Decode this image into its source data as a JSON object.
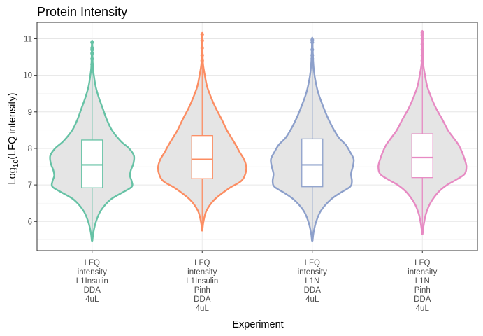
{
  "chart_data": {
    "type": "violin",
    "title": "Protein Intensity",
    "xlabel": "Experiment",
    "ylabel_parts": [
      "Log",
      "10",
      "(LFQ intensity)"
    ],
    "ylim": [
      5.2,
      11.45
    ],
    "yticks": [
      6,
      7,
      8,
      9,
      10,
      11
    ],
    "grid": true,
    "legend": "none",
    "categories": [
      [
        "LFQ",
        "intensity",
        "L1Insulin",
        "DDA",
        "4uL"
      ],
      [
        "LFQ",
        "intensity",
        "L1Insulin",
        "Pinh",
        "DDA",
        "4uL"
      ],
      [
        "LFQ",
        "intensity",
        "L1N",
        "DDA",
        "4uL"
      ],
      [
        "LFQ",
        "intensity",
        "L1N",
        "Pinh",
        "DDA",
        "4uL"
      ]
    ],
    "series": [
      {
        "color": "#66c2a5",
        "box": {
          "q1": 6.92,
          "median": 7.55,
          "q3": 8.23,
          "whisker_low": 5.55,
          "whisker_high": 10.2
        },
        "violin": [
          [
            5.45,
            0.005
          ],
          [
            5.7,
            0.03
          ],
          [
            6.0,
            0.09
          ],
          [
            6.3,
            0.2
          ],
          [
            6.6,
            0.42
          ],
          [
            6.8,
            0.7
          ],
          [
            6.95,
            0.9
          ],
          [
            7.1,
            0.9
          ],
          [
            7.25,
            0.86
          ],
          [
            7.4,
            0.88
          ],
          [
            7.6,
            0.94
          ],
          [
            7.8,
            0.95
          ],
          [
            8.0,
            0.84
          ],
          [
            8.2,
            0.65
          ],
          [
            8.5,
            0.45
          ],
          [
            8.8,
            0.33
          ],
          [
            9.1,
            0.24
          ],
          [
            9.4,
            0.15
          ],
          [
            9.7,
            0.08
          ],
          [
            10.0,
            0.04
          ],
          [
            10.2,
            0.02
          ],
          [
            10.5,
            0.01
          ],
          [
            10.9,
            0.005
          ]
        ],
        "outliers": [
          10.3,
          10.45,
          10.6,
          10.7,
          10.75,
          10.9
        ]
      },
      {
        "color": "#fc8d62",
        "box": {
          "q1": 7.17,
          "median": 7.7,
          "q3": 8.35,
          "whisker_low": 5.85,
          "whisker_high": 10.3
        },
        "violin": [
          [
            5.75,
            0.005
          ],
          [
            6.0,
            0.03
          ],
          [
            6.3,
            0.1
          ],
          [
            6.6,
            0.28
          ],
          [
            6.9,
            0.6
          ],
          [
            7.1,
            0.88
          ],
          [
            7.3,
            0.98
          ],
          [
            7.5,
            1.0
          ],
          [
            7.7,
            0.95
          ],
          [
            7.9,
            0.85
          ],
          [
            8.1,
            0.76
          ],
          [
            8.3,
            0.66
          ],
          [
            8.5,
            0.56
          ],
          [
            8.8,
            0.44
          ],
          [
            9.1,
            0.31
          ],
          [
            9.4,
            0.2
          ],
          [
            9.7,
            0.11
          ],
          [
            10.0,
            0.06
          ],
          [
            10.3,
            0.02
          ],
          [
            10.6,
            0.01
          ],
          [
            11.1,
            0.005
          ]
        ],
        "outliers": [
          10.4,
          10.55,
          10.75,
          10.95,
          11.12
        ]
      },
      {
        "color": "#8da0cb",
        "box": {
          "q1": 6.95,
          "median": 7.55,
          "q3": 8.26,
          "whisker_low": 5.55,
          "whisker_high": 10.25
        },
        "violin": [
          [
            5.45,
            0.005
          ],
          [
            5.7,
            0.03
          ],
          [
            6.0,
            0.09
          ],
          [
            6.3,
            0.2
          ],
          [
            6.6,
            0.42
          ],
          [
            6.8,
            0.66
          ],
          [
            6.95,
            0.86
          ],
          [
            7.1,
            0.9
          ],
          [
            7.3,
            0.88
          ],
          [
            7.5,
            0.92
          ],
          [
            7.7,
            0.94
          ],
          [
            7.9,
            0.86
          ],
          [
            8.1,
            0.76
          ],
          [
            8.3,
            0.6
          ],
          [
            8.6,
            0.45
          ],
          [
            8.9,
            0.33
          ],
          [
            9.2,
            0.23
          ],
          [
            9.5,
            0.14
          ],
          [
            9.8,
            0.08
          ],
          [
            10.1,
            0.04
          ],
          [
            10.4,
            0.02
          ],
          [
            10.7,
            0.01
          ],
          [
            11.0,
            0.005
          ]
        ],
        "outliers": [
          10.3,
          10.45,
          10.55,
          10.7,
          10.9,
          10.97
        ]
      },
      {
        "color": "#e78ac3",
        "box": {
          "q1": 7.2,
          "median": 7.75,
          "q3": 8.4,
          "whisker_low": 5.75,
          "whisker_high": 10.3
        },
        "violin": [
          [
            5.65,
            0.005
          ],
          [
            5.9,
            0.03
          ],
          [
            6.2,
            0.08
          ],
          [
            6.5,
            0.18
          ],
          [
            6.8,
            0.36
          ],
          [
            7.0,
            0.56
          ],
          [
            7.15,
            0.78
          ],
          [
            7.3,
            0.96
          ],
          [
            7.5,
            1.0
          ],
          [
            7.7,
            0.96
          ],
          [
            7.9,
            0.9
          ],
          [
            8.1,
            0.82
          ],
          [
            8.3,
            0.7
          ],
          [
            8.5,
            0.58
          ],
          [
            8.8,
            0.45
          ],
          [
            9.1,
            0.31
          ],
          [
            9.4,
            0.2
          ],
          [
            9.7,
            0.11
          ],
          [
            10.0,
            0.06
          ],
          [
            10.3,
            0.02
          ],
          [
            10.6,
            0.01
          ],
          [
            11.15,
            0.005
          ]
        ],
        "outliers": [
          10.4,
          10.55,
          10.7,
          10.85,
          11.0,
          11.1,
          11.17
        ]
      }
    ]
  }
}
